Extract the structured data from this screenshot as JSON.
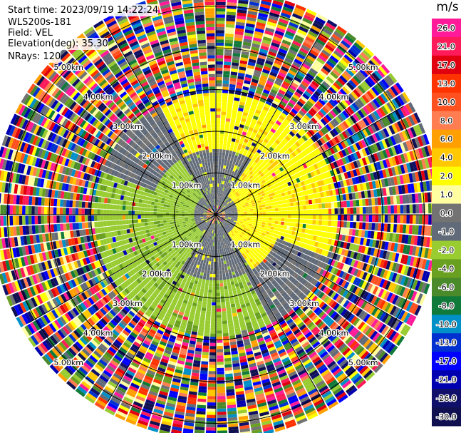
{
  "header": {
    "start_time": "Start time: 2023/09/19 14:22:24",
    "instrument": "WLS200s-181",
    "field": "Field: VEL",
    "elevation": "Elevation(deg): 35.30",
    "nrays": "NRays: 120"
  },
  "colorbar": {
    "unit": "m/s",
    "ticks": [
      "26.0",
      "21.0",
      "17.0",
      "13.0",
      "10.0",
      "8.0",
      "6.0",
      "4.0",
      "2.0",
      "1.0",
      "0.0",
      "-1.0",
      "-2.0",
      "-4.0",
      "-6.0",
      "-8.0",
      "-10.0",
      "-13.0",
      "-17.0",
      "-21.0",
      "-26.0",
      "-30.0"
    ],
    "colors": [
      "#ff1a99",
      "#ff1a5a",
      "#e00010",
      "#ff3300",
      "#ff5020",
      "#ff7d50",
      "#ffa000",
      "#ffc800",
      "#ffff00",
      "#ffffa0",
      "#737373",
      "#606a78",
      "#98cc30",
      "#6aa020",
      "#4a8a2a",
      "#0f7a3a",
      "#0090c8",
      "#0030d0",
      "#0000ff",
      "#0000b0",
      "#10106a",
      "#101050"
    ]
  },
  "chart_data": {
    "type": "heatmap",
    "projection": "polar-ppi",
    "field": "VEL",
    "unit": "m/s",
    "n_rays": 120,
    "range_rings_km": [
      "1.00km",
      "2.00km",
      "3.00km",
      "4.00km",
      "5.00km"
    ],
    "ring_label_format": "{r}.00km",
    "vmin": -30.0,
    "vmax": 26.0,
    "grid": true,
    "spokes_deg": [
      0,
      30,
      60,
      90,
      120,
      150,
      180,
      210,
      240,
      270,
      300,
      330
    ],
    "pattern_by_range": [
      {
        "range_km": [
          0.0,
          0.3
        ],
        "description": "mixed noise"
      },
      {
        "range_km": [
          0.3,
          1.5
        ],
        "description": "gray near zero, yellow east, green west"
      },
      {
        "range_km": [
          1.5,
          2.9
        ],
        "description": "gray/yellow/green velocity dipole"
      },
      {
        "range_km": [
          2.9,
          5.4
        ],
        "description": "random noise beyond signal"
      }
    ]
  }
}
